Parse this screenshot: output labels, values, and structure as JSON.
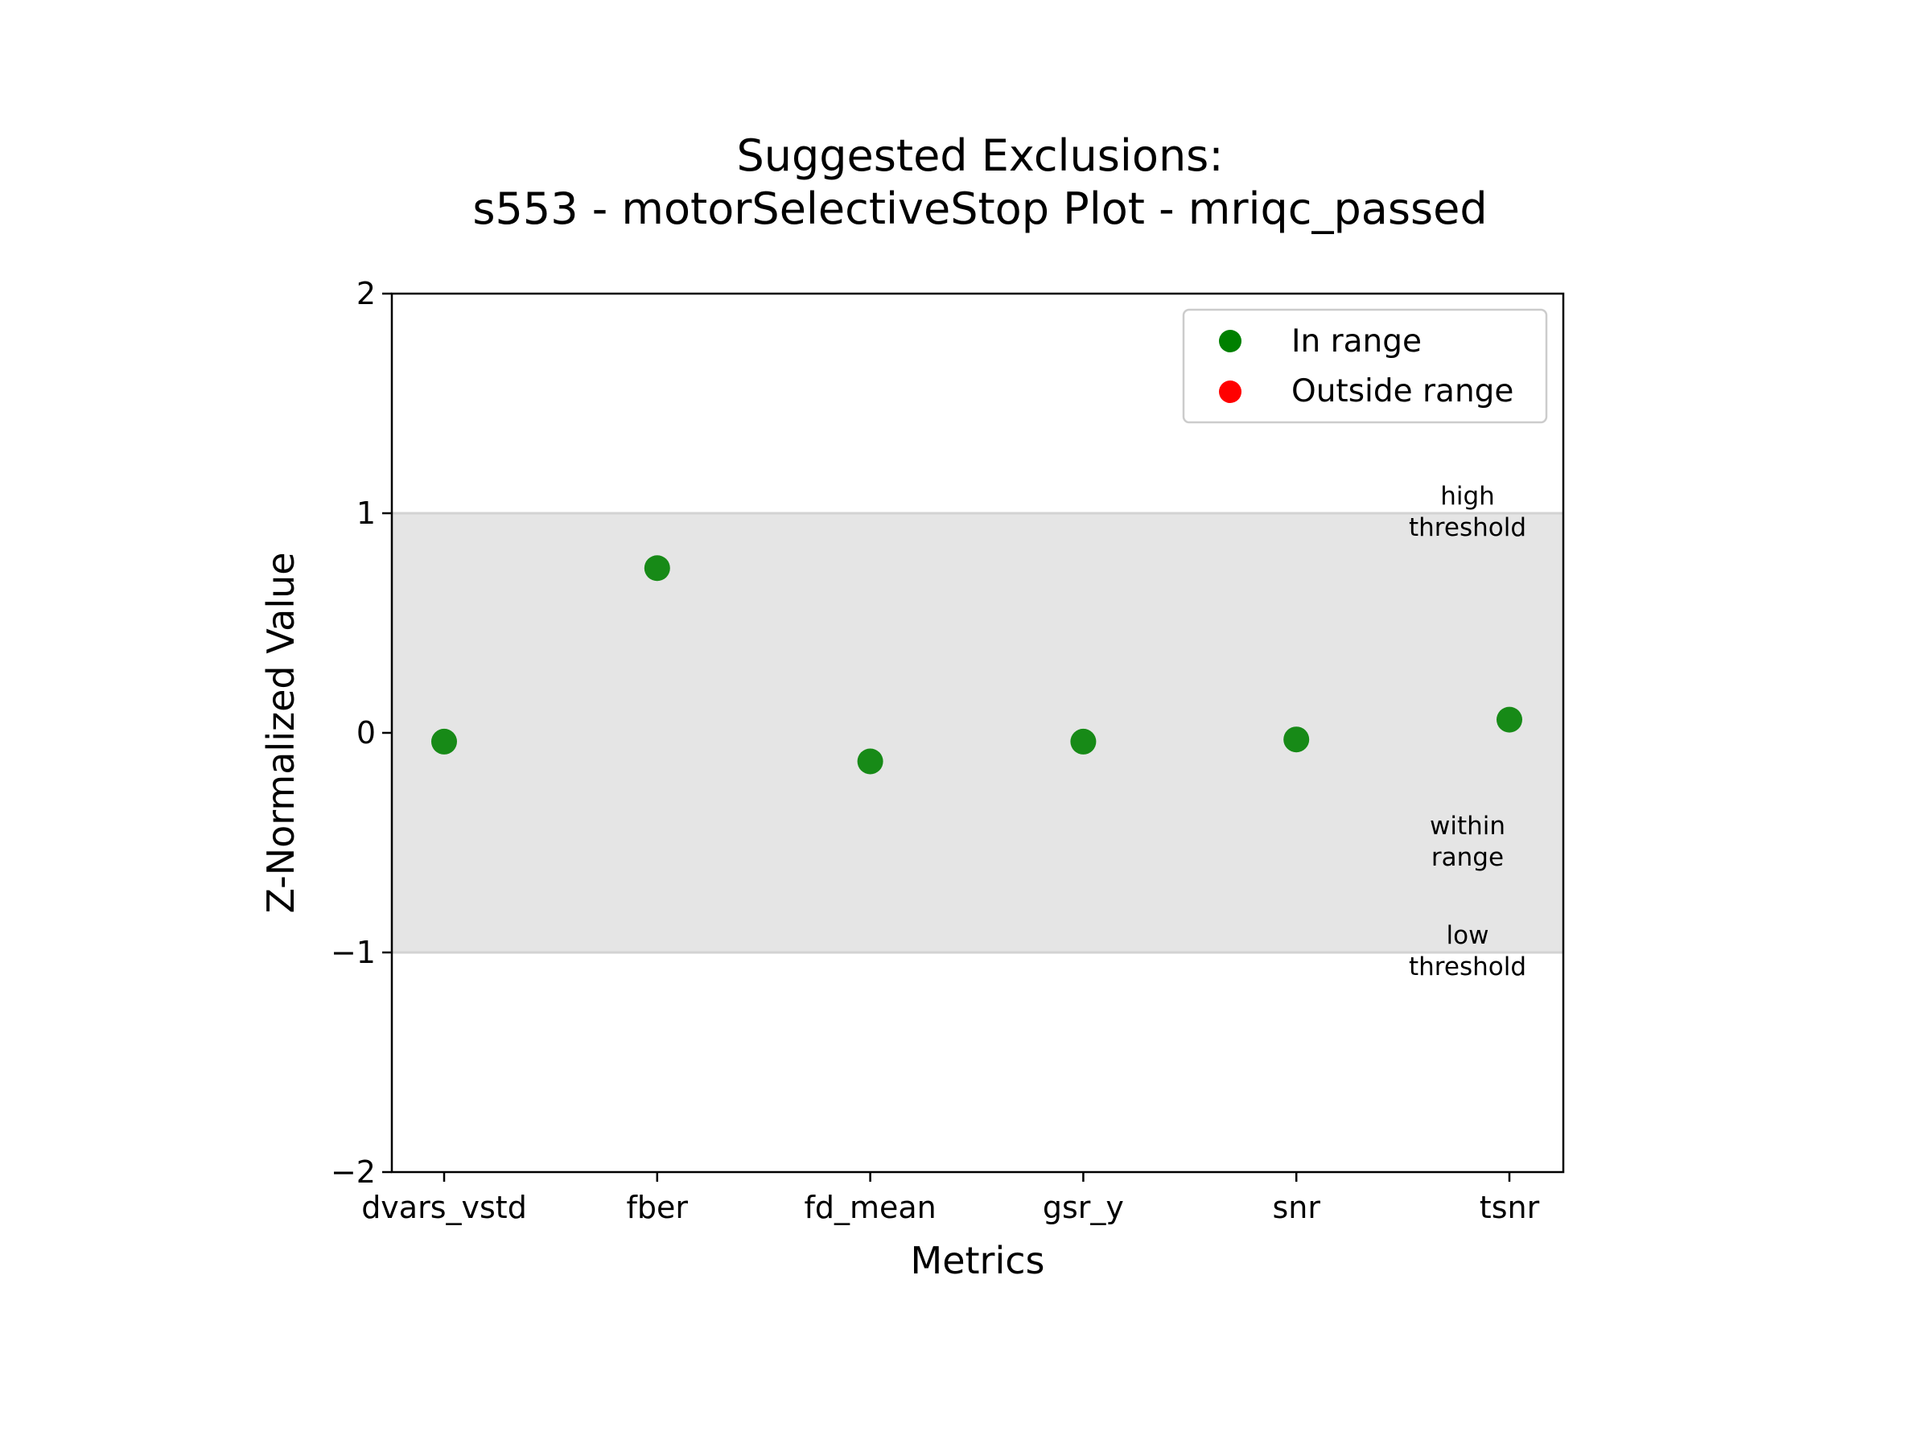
{
  "chart_data": {
    "type": "scatter",
    "title_line1": "Suggested Exclusions:",
    "title_line2": "s553 - motorSelectiveStop Plot - mriqc_passed",
    "xlabel": "Metrics",
    "ylabel": "Z-Normalized Value",
    "categories": [
      "dvars_vstd",
      "fber",
      "fd_mean",
      "gsr_y",
      "snr",
      "tsnr"
    ],
    "y_ticks": [
      "2",
      "1",
      "0",
      "−1",
      "−2"
    ],
    "ylim": [
      -2,
      2
    ],
    "grid": false,
    "legend_position": "top-right",
    "series": [
      {
        "name": "In range",
        "color": "#008000",
        "values": [
          -0.04,
          0.75,
          -0.13,
          -0.04,
          -0.03,
          0.06
        ]
      },
      {
        "name": "Outside range",
        "color": "#ff0000",
        "values": []
      }
    ],
    "range_band": {
      "low": -1,
      "high": 1,
      "color": "#e5e5e5",
      "line_color": "#d3d3d3"
    },
    "annotations": {
      "high_1": "high",
      "high_2": "threshold",
      "within_1": "within",
      "within_2": "range",
      "low_1": "low",
      "low_2": "threshold"
    }
  }
}
